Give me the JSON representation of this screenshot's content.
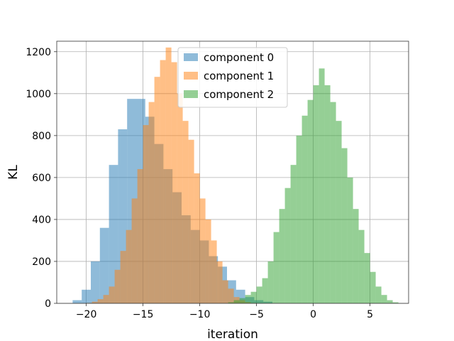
{
  "chart_data": {
    "type": "histogram",
    "title": "",
    "xlabel": "iteration",
    "ylabel": "KL",
    "xlim": [
      -22.6,
      8.4
    ],
    "ylim": [
      0,
      1250
    ],
    "xticks": [
      -20,
      -15,
      -10,
      -5,
      0,
      5
    ],
    "yticks": [
      0,
      200,
      400,
      600,
      800,
      1000,
      1200
    ],
    "grid": true,
    "legend_position": "top-center",
    "series": [
      {
        "name": "component 0",
        "color": "#1f77b4",
        "alpha": 0.5,
        "bin_start": -21.2,
        "bin_width": 0.8,
        "counts": [
          15,
          65,
          200,
          360,
          660,
          830,
          975,
          975,
          890,
          760,
          640,
          530,
          420,
          350,
          300,
          225,
          175,
          110,
          65,
          30,
          15,
          8
        ]
      },
      {
        "name": "component 1",
        "color": "#ff7f0e",
        "alpha": 0.5,
        "bin_start": -20.0,
        "bin_width": 0.5,
        "counts": [
          2,
          8,
          20,
          40,
          80,
          160,
          250,
          350,
          500,
          640,
          850,
          960,
          1080,
          1160,
          1220,
          1150,
          1000,
          870,
          780,
          620,
          500,
          400,
          300,
          200,
          110,
          70,
          30,
          15,
          6,
          2
        ]
      },
      {
        "name": "component 2",
        "color": "#2ca02c",
        "alpha": 0.5,
        "bin_start": -7.5,
        "bin_width": 0.5,
        "counts": [
          5,
          15,
          25,
          40,
          55,
          80,
          120,
          200,
          340,
          450,
          550,
          660,
          800,
          895,
          970,
          1040,
          1120,
          1040,
          960,
          870,
          740,
          600,
          450,
          350,
          240,
          150,
          80,
          40,
          15,
          5
        ]
      }
    ]
  }
}
